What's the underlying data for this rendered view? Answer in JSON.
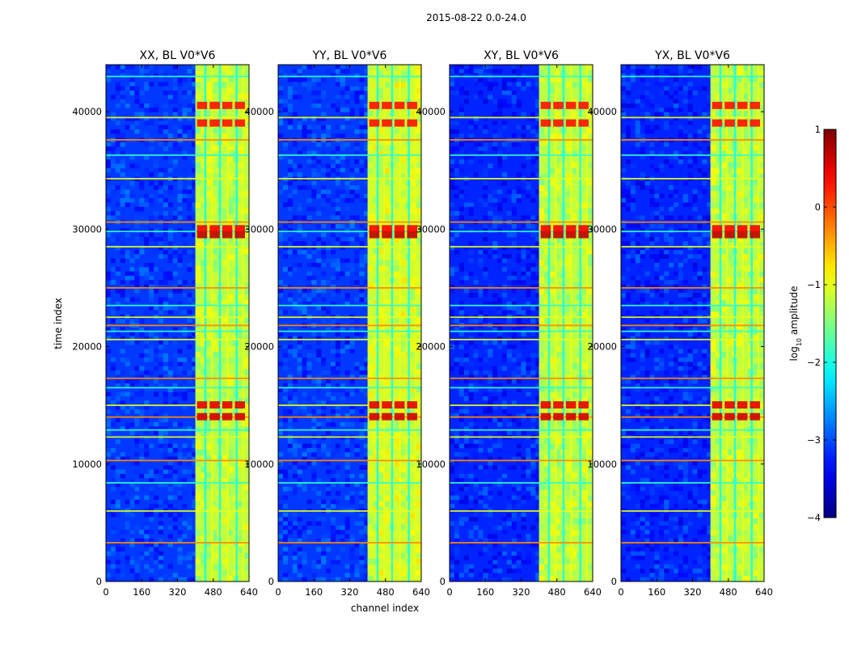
{
  "chart_data": {
    "type": "heatmap",
    "suptitle": "2015-08-22 0.0-24.0",
    "xlabel": "channel index",
    "ylabel": "time index",
    "xlim": [
      0,
      640
    ],
    "ylim": [
      0,
      44000
    ],
    "x_ticks": [
      0,
      160,
      320,
      480,
      640
    ],
    "y_ticks": [
      0,
      10000,
      20000,
      30000,
      40000
    ],
    "colormap": "jet",
    "colorbar": {
      "label_base": "log",
      "label_sub": "10",
      "label_rest": " amplitude",
      "range": [
        -4,
        1
      ],
      "ticks": [
        1,
        0,
        -1,
        -2,
        -3,
        -4
      ],
      "tick_labels": [
        "1",
        "0",
        "−1",
        "−2",
        "−3",
        "−4"
      ]
    },
    "panels": [
      {
        "title": "XX, BL V0*V6",
        "band_channels": [
          400,
          640
        ],
        "band_level": -1.2,
        "background_level": -3.1
      },
      {
        "title": "YY, BL V0*V6",
        "band_channels": [
          400,
          640
        ],
        "band_level": -1.1,
        "background_level": -3.1
      },
      {
        "title": "XY, BL V0*V6",
        "band_channels": [
          400,
          640
        ],
        "band_level": -1.2,
        "background_level": -3.2
      },
      {
        "title": "YX, BL V0*V6",
        "band_channels": [
          400,
          640
        ],
        "band_level": -1.2,
        "background_level": -3.2
      }
    ],
    "horizontal_rfi_rows": [
      3300,
      6000,
      8400,
      10300,
      12300,
      12900,
      14000,
      15000,
      16500,
      17300,
      20600,
      21300,
      21800,
      22500,
      23500,
      25000,
      28500,
      29800,
      30600,
      34300,
      36300,
      37600,
      39500,
      43000
    ],
    "hot_spots": [
      {
        "t": 14000,
        "level": 0.6
      },
      {
        "t": 15000,
        "level": 0.5
      },
      {
        "t": 29500,
        "level": 0.7
      },
      {
        "t": 30000,
        "level": 0.4
      },
      {
        "t": 39000,
        "level": 0.3
      },
      {
        "t": 40500,
        "level": 0.3
      }
    ]
  }
}
